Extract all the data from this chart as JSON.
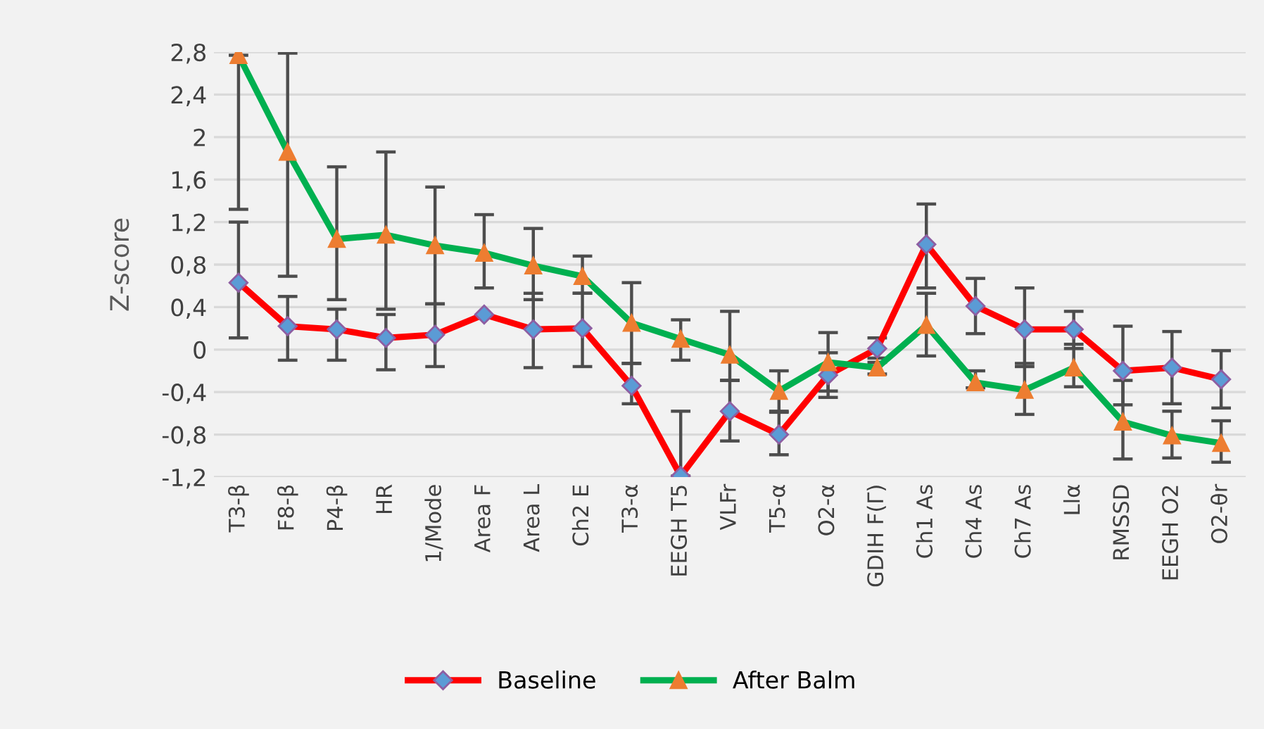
{
  "chart_data": {
    "type": "line",
    "ylabel": "Z-score",
    "categories": [
      "T3-β",
      "F8-β",
      "P4-β",
      "HR",
      "1/Mode",
      "Area F",
      "Area L",
      "Ch2 E",
      "T3-α",
      "EEGH T5",
      "VLFr",
      "T5-α",
      "O2-α",
      "GDIH F(Γ)",
      "Ch1 As",
      "Ch4 As",
      "Ch7 As",
      "Llα",
      "RMSSD",
      "EEGH O2",
      "O2-θr"
    ],
    "series": [
      {
        "name": "Baseline",
        "color": "#ff0000",
        "marker": "diamond",
        "values": [
          0.63,
          0.22,
          0.19,
          0.11,
          0.14,
          0.33,
          0.19,
          0.2,
          -0.34,
          -1.19,
          -0.58,
          -0.8,
          -0.24,
          0.01,
          0.99,
          0.41,
          0.19,
          0.19,
          -0.2,
          -0.17,
          -0.28
        ],
        "errors": [
          [
            0.11,
            1.2
          ],
          [
            -0.1,
            0.5
          ],
          [
            -0.1,
            0.38
          ],
          [
            -0.19,
            0.33
          ],
          [
            -0.16,
            0.43
          ],
          null,
          [
            -0.17,
            0.53
          ],
          [
            -0.16,
            0.53
          ],
          [
            -0.51,
            -0.13
          ],
          [
            -1.19,
            -0.58
          ],
          [
            -0.86,
            -0.29
          ],
          [
            -0.99,
            -0.58
          ],
          [
            -0.45,
            -0.03
          ],
          [
            -0.08,
            0.11
          ],
          [
            0.58,
            1.37
          ],
          [
            0.15,
            0.67
          ],
          [
            -0.16,
            0.58
          ],
          [
            0.01,
            0.36
          ],
          [
            -0.52,
            0.22
          ],
          [
            -0.51,
            0.17
          ],
          [
            -0.55,
            -0.01
          ]
        ]
      },
      {
        "name": "After Balm",
        "color": "#00b050",
        "marker": "triangle",
        "values": [
          2.77,
          1.86,
          1.04,
          1.08,
          0.98,
          0.91,
          0.79,
          0.69,
          0.25,
          0.1,
          -0.05,
          -0.39,
          -0.12,
          -0.17,
          0.23,
          -0.31,
          -0.38,
          -0.17,
          -0.68,
          -0.81,
          -0.88
        ],
        "errors": [
          [
            1.32,
            2.77
          ],
          [
            0.69,
            2.79
          ],
          [
            0.47,
            1.72
          ],
          [
            0.38,
            1.86
          ],
          [
            0.43,
            1.53
          ],
          [
            0.58,
            1.27
          ],
          [
            0.47,
            1.14
          ],
          [
            0.53,
            0.88
          ],
          [
            -0.13,
            0.63
          ],
          [
            -0.1,
            0.28
          ],
          [
            -0.29,
            0.36
          ],
          [
            -0.59,
            -0.2
          ],
          [
            -0.39,
            0.16
          ],
          [
            -0.23,
            -0.12
          ],
          [
            -0.06,
            0.53
          ],
          [
            -0.36,
            -0.2
          ],
          [
            -0.61,
            -0.13
          ],
          [
            -0.35,
            0.05
          ],
          [
            -1.03,
            -0.29
          ],
          [
            -1.02,
            -0.58
          ],
          [
            -1.06,
            -0.67
          ]
        ]
      }
    ],
    "ylim": [
      -1.2,
      2.8
    ],
    "yticks": [
      {
        "value": 2.8,
        "label": "2,8"
      },
      {
        "value": 2.4,
        "label": "2,4"
      },
      {
        "value": 2,
        "label": "2"
      },
      {
        "value": 1.6,
        "label": "1,6"
      },
      {
        "value": 1.2,
        "label": "1,2"
      },
      {
        "value": 0.8,
        "label": "0,8"
      },
      {
        "value": 0.4,
        "label": "0,4"
      },
      {
        "value": 0,
        "label": "0"
      },
      {
        "value": -0.4,
        "label": "-0,4"
      },
      {
        "value": -0.8,
        "label": "-0,8"
      },
      {
        "value": -1.2,
        "label": "-1,2"
      }
    ],
    "grid": "y",
    "legend": "bottom",
    "line_style": "solid"
  }
}
